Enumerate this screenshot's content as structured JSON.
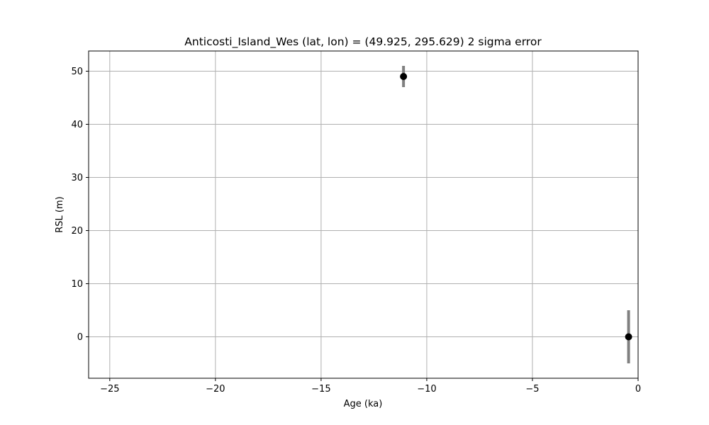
{
  "chart_data": {
    "type": "scatter",
    "title": "Anticosti_Island_Wes (lat, lon) = (49.925, 295.629)  2 sigma error",
    "xlabel": "Age (ka)",
    "ylabel": "RSL (m)",
    "xlim": [
      -26,
      0
    ],
    "ylim": [
      -7.8,
      53.8
    ],
    "xticks": [
      -25,
      -20,
      -15,
      -10,
      -5,
      0
    ],
    "xtick_labels": [
      "−25",
      "−20",
      "−15",
      "−10",
      "−5",
      "0"
    ],
    "yticks": [
      0,
      10,
      20,
      30,
      40,
      50
    ],
    "ytick_labels": [
      "0",
      "10",
      "20",
      "30",
      "40",
      "50"
    ],
    "grid": true,
    "points": [
      {
        "x": -11.1,
        "y": 49.0,
        "err": 2.0
      },
      {
        "x": -0.45,
        "y": 0.0,
        "err": 5.0
      }
    ],
    "colors": {
      "marker": "#000000",
      "errorbar": "#808080",
      "grid": "#b0b0b0"
    }
  }
}
